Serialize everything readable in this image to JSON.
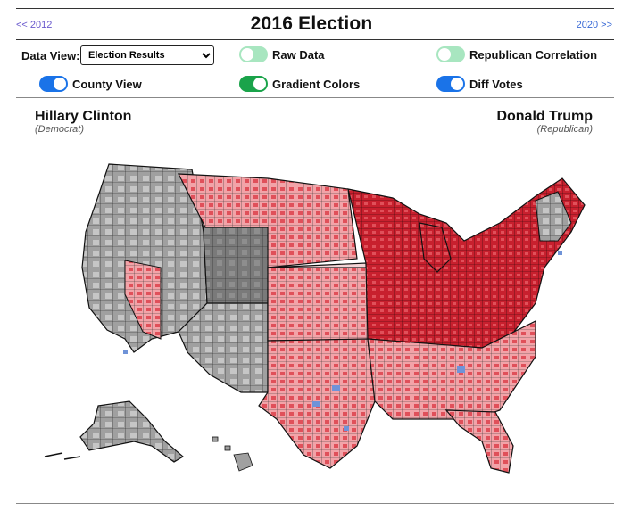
{
  "nav": {
    "prev": "<< 2012",
    "next": "2020 >>"
  },
  "title": "2016 Election",
  "controls": {
    "data_view_label": "Data View:",
    "data_view_selected": "Election Results",
    "toggles": [
      {
        "label": "Raw Data",
        "state": "off"
      },
      {
        "label": "Republican Correlation",
        "state": "off"
      },
      {
        "label": "County View",
        "state": "on"
      },
      {
        "label": "Gradient Colors",
        "state": "on"
      },
      {
        "label": "Diff Votes",
        "state": "on"
      }
    ]
  },
  "candidates": {
    "democrat": {
      "name": "Hillary Clinton",
      "party": "(Democrat)"
    },
    "republican": {
      "name": "Donald Trump",
      "party": "(Republican)"
    }
  },
  "colors": {
    "republican_strong": "#c8202e",
    "republican_mid": "#e0505a",
    "republican_light": "#f2a3a8",
    "democrat": "#6f93d8",
    "no_data_dark": "#7a7a7a",
    "no_data": "#a0a0a0",
    "no_data_light": "#cfcfcf",
    "border": "#111111"
  },
  "map": {
    "icon": "us-county-map"
  }
}
